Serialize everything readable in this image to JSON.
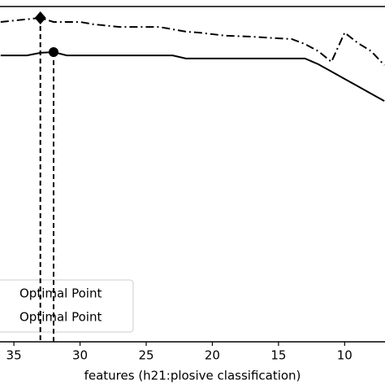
{
  "chart_data": {
    "type": "line",
    "xlabel": "features (h21:plosive classification)",
    "xlim": [
      36.05,
      6.95
    ],
    "xticks": [
      35,
      30,
      25,
      20,
      15,
      10
    ],
    "ylim": [
      0,
      1
    ],
    "series": [
      {
        "style": "dashdot",
        "color": "#000000",
        "x": [
          36,
          33,
          32,
          30,
          29,
          27,
          24,
          22,
          21,
          19,
          17,
          15,
          14,
          13,
          12,
          11,
          10,
          9,
          8,
          7
        ],
        "values": [
          0.954,
          0.966,
          0.954,
          0.954,
          0.947,
          0.939,
          0.939,
          0.925,
          0.922,
          0.913,
          0.91,
          0.905,
          0.903,
          0.888,
          0.867,
          0.835,
          0.922,
          0.891,
          0.867,
          0.825
        ]
      },
      {
        "style": "solid",
        "color": "#000000",
        "x": [
          36,
          34,
          33,
          32,
          31,
          23,
          22,
          13,
          12,
          11,
          10,
          9,
          8,
          7
        ],
        "values": [
          0.854,
          0.854,
          0.862,
          0.864,
          0.854,
          0.854,
          0.845,
          0.845,
          0.828,
          0.806,
          0.784,
          0.762,
          0.74,
          0.718
        ]
      }
    ],
    "markers": [
      {
        "label": "Optimal Point",
        "marker": "diamond",
        "x": 33,
        "y": 0.966
      },
      {
        "label": "Optimal Point",
        "marker": "circle",
        "x": 32,
        "y": 0.864
      }
    ]
  }
}
